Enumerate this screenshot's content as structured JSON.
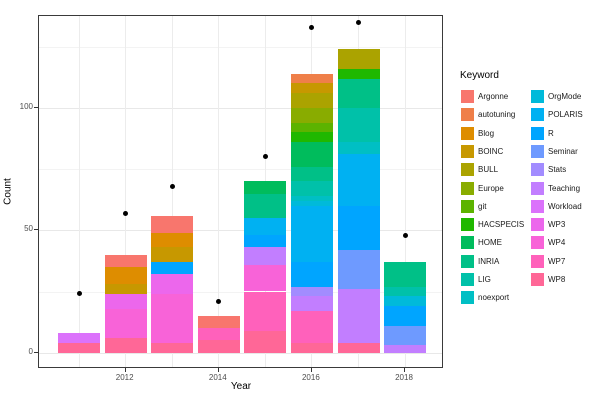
{
  "chart_data": {
    "type": "bar",
    "stacked": true,
    "title": "",
    "xlabel": "Year",
    "ylabel": "Count",
    "categories": [
      2011,
      2012,
      2013,
      2014,
      2015,
      2016,
      2017,
      2018
    ],
    "x_tick_labels": [
      "2012",
      "2014",
      "2016",
      "2018"
    ],
    "y_ticks": [
      0,
      50,
      100
    ],
    "y_minor_gridlines": [
      25,
      75,
      125
    ],
    "ylim": [
      0,
      137
    ],
    "grid": true,
    "bars": [
      {
        "year": 2011,
        "total": 8,
        "segments": [
          {
            "keyword": "WP8",
            "value": 4
          },
          {
            "keyword": "Workload",
            "value": 4
          }
        ]
      },
      {
        "year": 2012,
        "total": 40,
        "segments": [
          {
            "keyword": "WP8",
            "value": 6
          },
          {
            "keyword": "WP4",
            "value": 12
          },
          {
            "keyword": "WP3",
            "value": 6
          },
          {
            "keyword": "BOINC",
            "value": 4
          },
          {
            "keyword": "Blog",
            "value": 7
          },
          {
            "keyword": "Argonne",
            "value": 5
          }
        ]
      },
      {
        "year": 2013,
        "total": 56,
        "segments": [
          {
            "keyword": "WP8",
            "value": 4
          },
          {
            "keyword": "WP4",
            "value": 20
          },
          {
            "keyword": "WP3",
            "value": 8
          },
          {
            "keyword": "R",
            "value": 5
          },
          {
            "keyword": "BOINC",
            "value": 6
          },
          {
            "keyword": "Blog",
            "value": 6
          },
          {
            "keyword": "Argonne",
            "value": 7
          }
        ]
      },
      {
        "year": 2014,
        "total": 15,
        "segments": [
          {
            "keyword": "WP8",
            "value": 5
          },
          {
            "keyword": "WP7",
            "value": 5
          },
          {
            "keyword": "Argonne",
            "value": 5
          }
        ]
      },
      {
        "year": 2015,
        "total": 70,
        "segments": [
          {
            "keyword": "WP8",
            "value": 9
          },
          {
            "keyword": "WP7",
            "value": 16
          },
          {
            "keyword": "WP4",
            "value": 11
          },
          {
            "keyword": "Teaching",
            "value": 7
          },
          {
            "keyword": "R",
            "value": 5
          },
          {
            "keyword": "POLARIS",
            "value": 7
          },
          {
            "keyword": "INRIA",
            "value": 10
          },
          {
            "keyword": "HOME",
            "value": 5
          }
        ]
      },
      {
        "year": 2016,
        "total": 114,
        "segments": [
          {
            "keyword": "WP8",
            "value": 4
          },
          {
            "keyword": "WP7",
            "value": 13
          },
          {
            "keyword": "Teaching",
            "value": 6
          },
          {
            "keyword": "Stats",
            "value": 4
          },
          {
            "keyword": "R",
            "value": 10
          },
          {
            "keyword": "POLARIS",
            "value": 23
          },
          {
            "keyword": "OrgMode",
            "value": 2
          },
          {
            "keyword": "noexport",
            "value": 2
          },
          {
            "keyword": "LIG",
            "value": 6
          },
          {
            "keyword": "INRIA",
            "value": 6
          },
          {
            "keyword": "HOME",
            "value": 10
          },
          {
            "keyword": "HACSPECIS",
            "value": 4
          },
          {
            "keyword": "git",
            "value": 4
          },
          {
            "keyword": "Europe",
            "value": 6
          },
          {
            "keyword": "BULL",
            "value": 6
          },
          {
            "keyword": "BOINC",
            "value": 4
          },
          {
            "keyword": "autotuning",
            "value": 4
          }
        ]
      },
      {
        "year": 2017,
        "total": 124,
        "segments": [
          {
            "keyword": "WP8",
            "value": 4
          },
          {
            "keyword": "Teaching",
            "value": 22
          },
          {
            "keyword": "Seminar",
            "value": 16
          },
          {
            "keyword": "R",
            "value": 18
          },
          {
            "keyword": "POLARIS",
            "value": 21
          },
          {
            "keyword": "noexport",
            "value": 5
          },
          {
            "keyword": "LIG",
            "value": 14
          },
          {
            "keyword": "INRIA",
            "value": 12
          },
          {
            "keyword": "HACSPECIS",
            "value": 4
          },
          {
            "keyword": "BULL",
            "value": 8
          }
        ]
      },
      {
        "year": 2018,
        "total": 37,
        "segments": [
          {
            "keyword": "Teaching",
            "value": 3
          },
          {
            "keyword": "Seminar",
            "value": 8
          },
          {
            "keyword": "R",
            "value": 8
          },
          {
            "keyword": "OrgMode",
            "value": 4
          },
          {
            "keyword": "LIG",
            "value": 4
          },
          {
            "keyword": "INRIA",
            "value": 10
          }
        ]
      }
    ],
    "points": {
      "name": "black-dots",
      "x": [
        2011,
        2012,
        2013,
        2014,
        2015,
        2016,
        2017,
        2018
      ],
      "values": [
        24,
        57,
        68,
        21,
        80,
        133,
        135,
        48
      ]
    },
    "legend": {
      "title": "Keyword",
      "position": "right",
      "entries": [
        {
          "label": "Argonne",
          "color": "#F8766D"
        },
        {
          "label": "autotuning",
          "color": "#EF7F49"
        },
        {
          "label": "Blog",
          "color": "#DE8D00"
        },
        {
          "label": "BOINC",
          "color": "#C79800"
        },
        {
          "label": "BULL",
          "color": "#ABA300"
        },
        {
          "label": "Europe",
          "color": "#89AC00"
        },
        {
          "label": "git",
          "color": "#5CB300"
        },
        {
          "label": "HACSPECIS",
          "color": "#1FB800"
        },
        {
          "label": "HOME",
          "color": "#00BC5C"
        },
        {
          "label": "INRIA",
          "color": "#00C087"
        },
        {
          "label": "LIG",
          "color": "#00C1A9"
        },
        {
          "label": "noexport",
          "color": "#00BFC4"
        },
        {
          "label": "OrgMode",
          "color": "#00BADA"
        },
        {
          "label": "POLARIS",
          "color": "#00B1F2"
        },
        {
          "label": "R",
          "color": "#00A5FF"
        },
        {
          "label": "Seminar",
          "color": "#6E9AFF"
        },
        {
          "label": "Stats",
          "color": "#A28CFF"
        },
        {
          "label": "Teaching",
          "color": "#C27EFF"
        },
        {
          "label": "Workload",
          "color": "#DB72FB"
        },
        {
          "label": "WP3",
          "color": "#EC67EC"
        },
        {
          "label": "WP4",
          "color": "#F863D8"
        },
        {
          "label": "WP7",
          "color": "#FF61BB"
        },
        {
          "label": "WP8",
          "color": "#FF6797"
        }
      ]
    },
    "style": {
      "major_gridline_color": "#E8E8E8",
      "minor_gridline_color": "#F3F3F3",
      "vertical_gridline_color": "#ECECEC",
      "panel_border_color": "#3a3a3a",
      "dot_color": "#000000"
    }
  }
}
